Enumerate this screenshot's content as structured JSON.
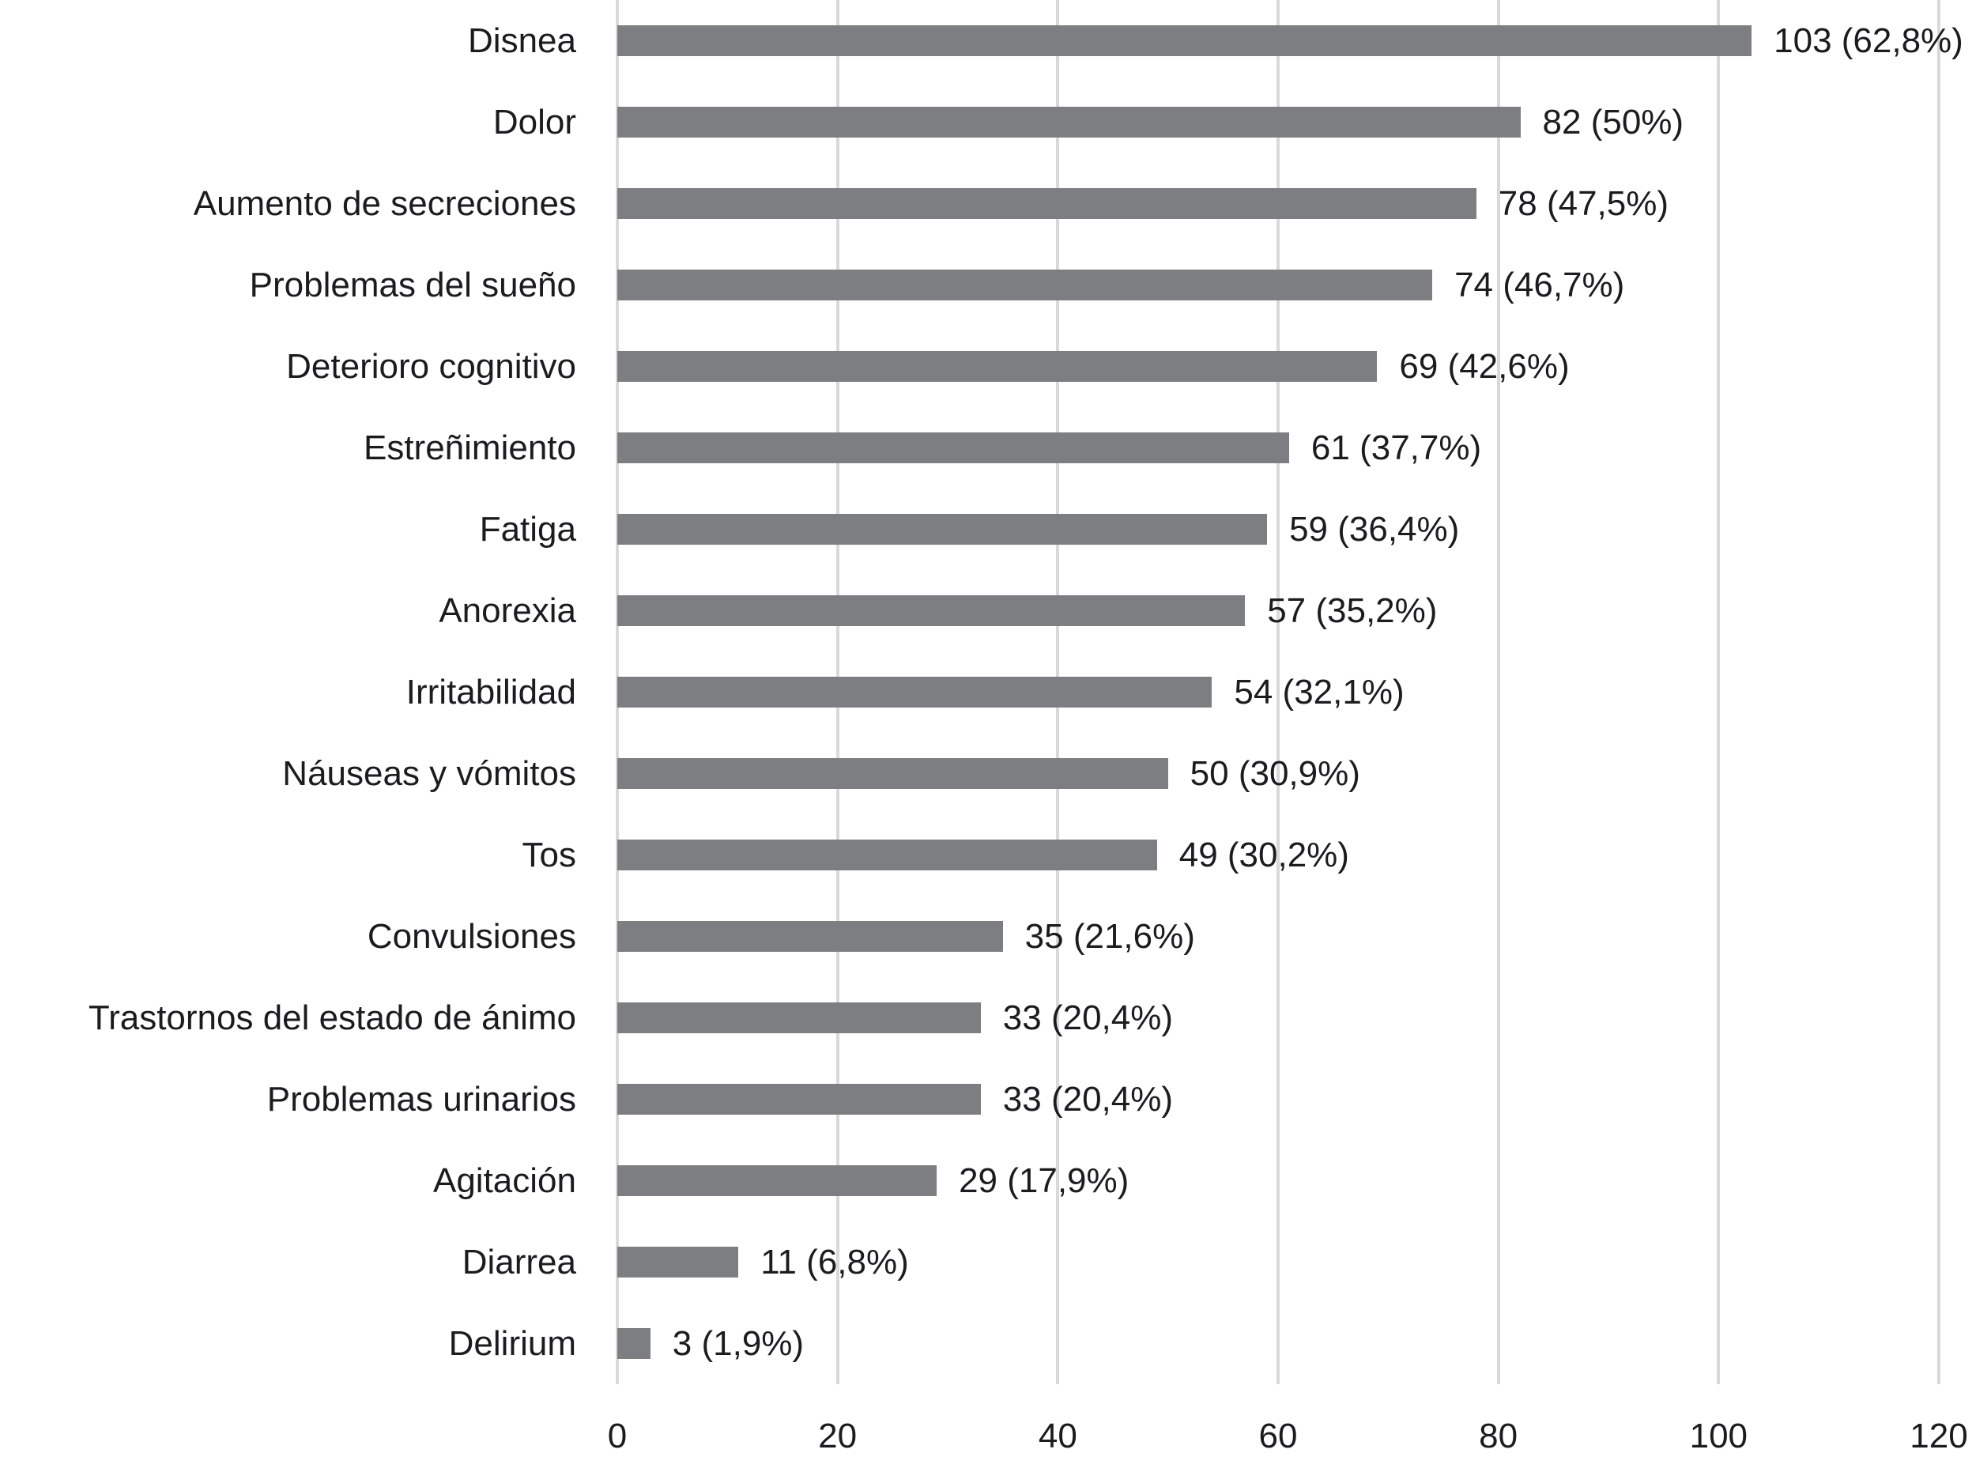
{
  "chart_data": {
    "type": "bar",
    "orientation": "horizontal",
    "title": "",
    "xlabel": "",
    "ylabel": "",
    "categories": [
      "Disnea",
      "Dolor",
      "Aumento de secreciones",
      "Problemas del sueño",
      "Deterioro cognitivo",
      "Estreñimiento",
      "Fatiga",
      "Anorexia",
      "Irritabilidad",
      "Náuseas y vómitos",
      "Tos",
      "Convulsiones",
      "Trastornos del estado de ánimo",
      "Problemas urinarios",
      "Agitación",
      "Diarrea",
      "Delirium"
    ],
    "values": [
      103,
      82,
      78,
      74,
      69,
      61,
      59,
      57,
      54,
      50,
      49,
      35,
      33,
      33,
      29,
      11,
      3
    ],
    "bar_labels": [
      "103 (62,8%)",
      "82 (50%)",
      "78 (47,5%)",
      "74 (46,7%)",
      "69 (42,6%)",
      "61 (37,7%)",
      "59 (36,4%)",
      "57 (35,2%)",
      "54 (32,1%)",
      "50 (30,9%)",
      "49 (30,2%)",
      "35 (21,6%)",
      "33 (20,4%)",
      "33 (20,4%)",
      "29 (17,9%)",
      "11 (6,8%)",
      "3 (1,9%)"
    ],
    "x_ticks": [
      0,
      20,
      40,
      60,
      80,
      100,
      120
    ],
    "xlim": [
      0,
      120
    ],
    "grid": "vertical-gridlines-on",
    "legend_position": "none",
    "bar_color": "#7c7e81",
    "gridline_color": "#d9d9da",
    "text_color": "#1c1c1e",
    "background_color": "#ffffff"
  }
}
